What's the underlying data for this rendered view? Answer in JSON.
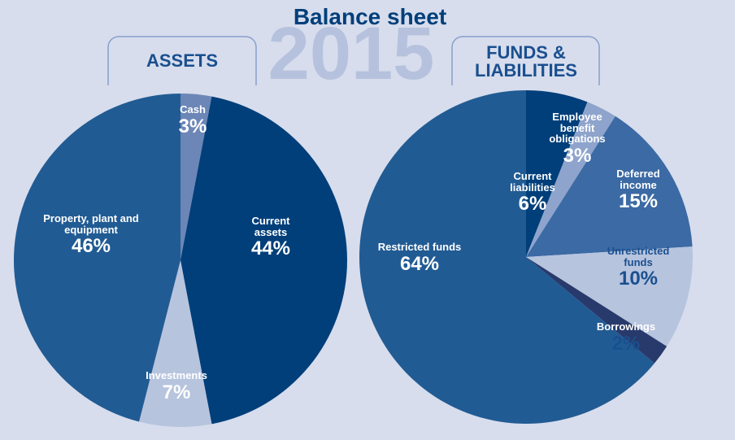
{
  "title": "Balance sheet",
  "year": "2015",
  "chart_data": [
    {
      "type": "pie",
      "title": "ASSETS",
      "categories": [
        "Cash",
        "Current assets",
        "Investments",
        "Property, plant and equipment"
      ],
      "values": [
        3,
        44,
        7,
        46
      ],
      "value_labels": [
        "3%",
        "44%",
        "7%",
        "46%"
      ],
      "colors": [
        "#6c86b7",
        "#003f7a",
        "#b7c4de",
        "#215b93"
      ]
    },
    {
      "type": "pie",
      "title": "FUNDS & LIABILITIES",
      "categories": [
        "Current liabilities",
        "Employee benefit obligations",
        "Deferred income",
        "Unrestricted funds",
        "Borrowings",
        "Restricted funds"
      ],
      "values": [
        6,
        3,
        15,
        10,
        2,
        64
      ],
      "value_labels": [
        "6%",
        "3%",
        "15%",
        "10%",
        "2%",
        "64%"
      ],
      "colors": [
        "#003f7a",
        "#8ea4cc",
        "#3b6aa4",
        "#b7c4de",
        "#283a6c",
        "#215b93"
      ]
    }
  ]
}
